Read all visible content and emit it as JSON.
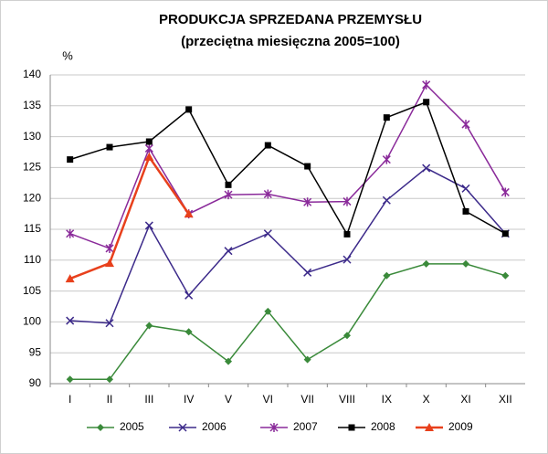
{
  "chart_data": {
    "type": "line",
    "title": "PRODUKCJA  SPRZEDANA  PRZEMYSŁU",
    "subtitle": "(przeciętna miesięczna 2005=100)",
    "y_label": "%",
    "categories": [
      "I",
      "II",
      "III",
      "IV",
      "V",
      "VI",
      "VII",
      "VIII",
      "IX",
      "X",
      "XI",
      "XII"
    ],
    "series": [
      {
        "name": "2005",
        "color": "#3a8a3a",
        "marker": "diamond",
        "values": [
          90.7,
          90.7,
          99.4,
          98.4,
          93.6,
          101.7,
          93.9,
          97.8,
          107.5,
          109.4,
          109.4,
          107.5
        ]
      },
      {
        "name": "2006",
        "color": "#3c2a8a",
        "marker": "x",
        "values": [
          100.2,
          99.8,
          115.6,
          104.3,
          111.5,
          114.3,
          108.0,
          110.1,
          119.7,
          124.9,
          121.6,
          114.3
        ]
      },
      {
        "name": "2007",
        "color": "#8a2a9a",
        "marker": "star",
        "values": [
          114.3,
          111.9,
          128.1,
          117.5,
          120.6,
          120.7,
          119.4,
          119.5,
          126.3,
          138.4,
          132.0,
          121.0
        ]
      },
      {
        "name": "2008",
        "color": "#000000",
        "marker": "square",
        "values": [
          126.3,
          128.3,
          129.2,
          134.4,
          122.2,
          128.6,
          125.2,
          114.2,
          133.1,
          135.6,
          117.9,
          114.3
        ]
      },
      {
        "name": "2009",
        "color": "#e8401c",
        "marker": "triangle",
        "values": [
          107.0,
          109.5,
          126.7,
          117.5,
          null,
          null,
          null,
          null,
          null,
          null,
          null,
          null
        ]
      }
    ],
    "ylim": [
      90,
      140
    ],
    "yticks": [
      90,
      95,
      100,
      105,
      110,
      115,
      120,
      125,
      130,
      135,
      140
    ],
    "grid": true,
    "legend": "bottom"
  }
}
